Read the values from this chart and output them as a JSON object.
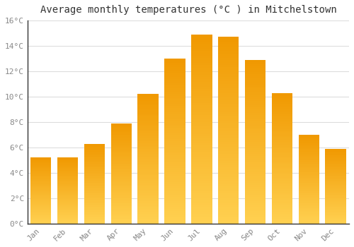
{
  "title": "Average monthly temperatures (°C ) in Mitchelstown",
  "months": [
    "Jan",
    "Feb",
    "Mar",
    "Apr",
    "May",
    "Jun",
    "Jul",
    "Aug",
    "Sep",
    "Oct",
    "Nov",
    "Dec"
  ],
  "temperatures": [
    5.2,
    5.2,
    6.3,
    7.9,
    10.2,
    13.0,
    14.9,
    14.7,
    12.9,
    10.3,
    7.0,
    5.9
  ],
  "bar_color_top": "#F5A800",
  "bar_color_bottom": "#FFD060",
  "ylim": [
    0,
    16
  ],
  "yticks": [
    0,
    2,
    4,
    6,
    8,
    10,
    12,
    14,
    16
  ],
  "ytick_labels": [
    "0°C",
    "2°C",
    "4°C",
    "6°C",
    "8°C",
    "10°C",
    "12°C",
    "14°C",
    "16°C"
  ],
  "background_color": "#FFFFFF",
  "grid_color": "#DDDDDD",
  "title_fontsize": 10,
  "tick_fontsize": 8,
  "tick_color": "#888888",
  "spine_color": "#333333"
}
